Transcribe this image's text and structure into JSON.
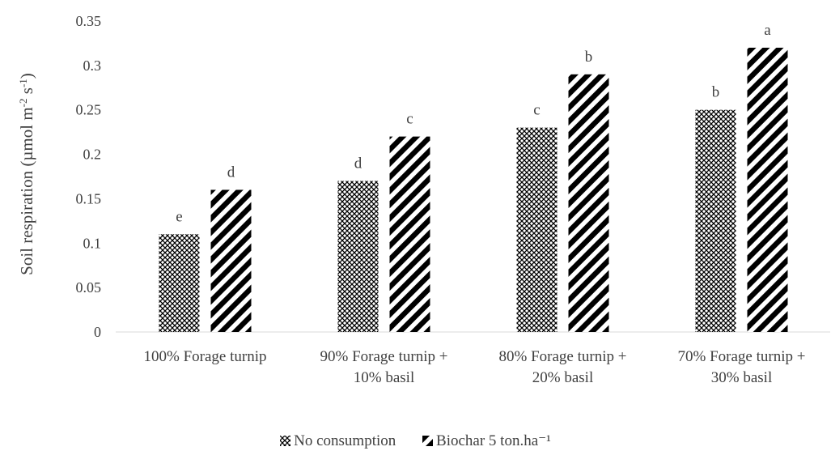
{
  "chart_data": {
    "type": "bar",
    "ylabel_main": "Soil respiration (µmol m",
    "ylabel_sup1": "-2",
    "ylabel_mid": " s",
    "ylabel_sup2": "-1",
    "ylabel_end": ")",
    "ylim": [
      0,
      0.35
    ],
    "yticks": [
      0,
      0.05,
      0.1,
      0.15,
      0.2,
      0.25,
      0.3,
      0.35
    ],
    "ytick_labels": [
      "0",
      "0.05",
      "0.1",
      "0.15",
      "0.2",
      "0.25",
      "0.3",
      "0.35"
    ],
    "grid": false,
    "legend_position": "bottom",
    "categories": [
      [
        "100% Forage turnip"
      ],
      [
        "90% Forage turnip +",
        "10% basil"
      ],
      [
        "80% Forage turnip +",
        "20% basil"
      ],
      [
        "70% Forage turnip +",
        "30% basil"
      ]
    ],
    "series": [
      {
        "name": "No consumption",
        "values": [
          0.11,
          0.17,
          0.23,
          0.25
        ],
        "letters": [
          "e",
          "d",
          "c",
          "b"
        ],
        "pattern": "crosshatch"
      },
      {
        "name": "Biochar 5 ton.ha⁻¹",
        "values": [
          0.16,
          0.22,
          0.29,
          0.32
        ],
        "letters": [
          "d",
          "c",
          "b",
          "a"
        ],
        "pattern": "diagonal"
      }
    ]
  }
}
